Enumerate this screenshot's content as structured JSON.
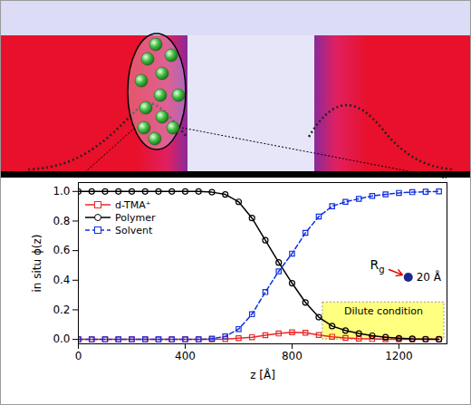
{
  "chart_data": {
    "type": "line",
    "x_label": "z [Å]",
    "y_label": "in situ ϕ(z)",
    "x": [
      0,
      50,
      100,
      150,
      200,
      250,
      300,
      350,
      400,
      450,
      500,
      550,
      600,
      650,
      700,
      750,
      800,
      850,
      900,
      950,
      1000,
      1050,
      1100,
      1150,
      1200,
      1250,
      1300,
      1350
    ],
    "series": [
      {
        "name": "d-TMA⁺",
        "color": "#e8282a",
        "marker": "square",
        "line_style": "solid",
        "values": [
          0,
          0,
          0,
          0,
          0,
          0,
          0,
          0,
          0,
          0,
          0,
          0.002,
          0.008,
          0.015,
          0.028,
          0.04,
          0.048,
          0.045,
          0.03,
          0.018,
          0.01,
          0.005,
          0.003,
          0.001,
          0.001,
          0,
          0,
          0
        ]
      },
      {
        "name": "Polymer",
        "color": "#000000",
        "marker": "circle",
        "line_style": "solid",
        "values": [
          1,
          1,
          1,
          1,
          1,
          1,
          1,
          1,
          1,
          1,
          0.995,
          0.98,
          0.93,
          0.82,
          0.67,
          0.52,
          0.38,
          0.25,
          0.15,
          0.09,
          0.06,
          0.04,
          0.025,
          0.015,
          0.008,
          0.004,
          0.002,
          0.001
        ]
      },
      {
        "name": "Solvent",
        "color": "#1030e0",
        "marker": "square",
        "line_style": "dashed",
        "values": [
          0,
          0,
          0,
          0,
          0,
          0,
          0,
          0,
          0,
          0,
          0.005,
          0.02,
          0.07,
          0.17,
          0.32,
          0.46,
          0.58,
          0.72,
          0.83,
          0.9,
          0.93,
          0.95,
          0.97,
          0.98,
          0.99,
          0.995,
          0.998,
          1.0
        ]
      }
    ],
    "xlim": [
      0,
      1380
    ],
    "xticks": [
      0,
      400,
      800,
      1200
    ],
    "ylim": [
      -0.03,
      1.06
    ],
    "yticks": [
      {
        "value": 0,
        "label": "0.0"
      },
      {
        "value": 0.2,
        "label": "0.2"
      },
      {
        "value": 0.4,
        "label": "0.4"
      },
      {
        "value": 0.6,
        "label": "0.6"
      },
      {
        "value": 0.8,
        "label": "0.8"
      },
      {
        "value": 1,
        "label": "1.0"
      }
    ],
    "legend": "top-left",
    "annotations": [
      {
        "text": "R",
        "subscript": "g",
        "x": 1125,
        "y": 0.5,
        "color": "#e00000",
        "point": {
          "x": 1235,
          "y": 0.42,
          "label": "20 Å",
          "color": "#1a2a8a"
        }
      }
    ],
    "regions": [
      {
        "text": "Dilute condition",
        "x": [
          915,
          1370
        ],
        "y": [
          0,
          0.25
        ],
        "color": "#ffff80"
      }
    ]
  }
}
